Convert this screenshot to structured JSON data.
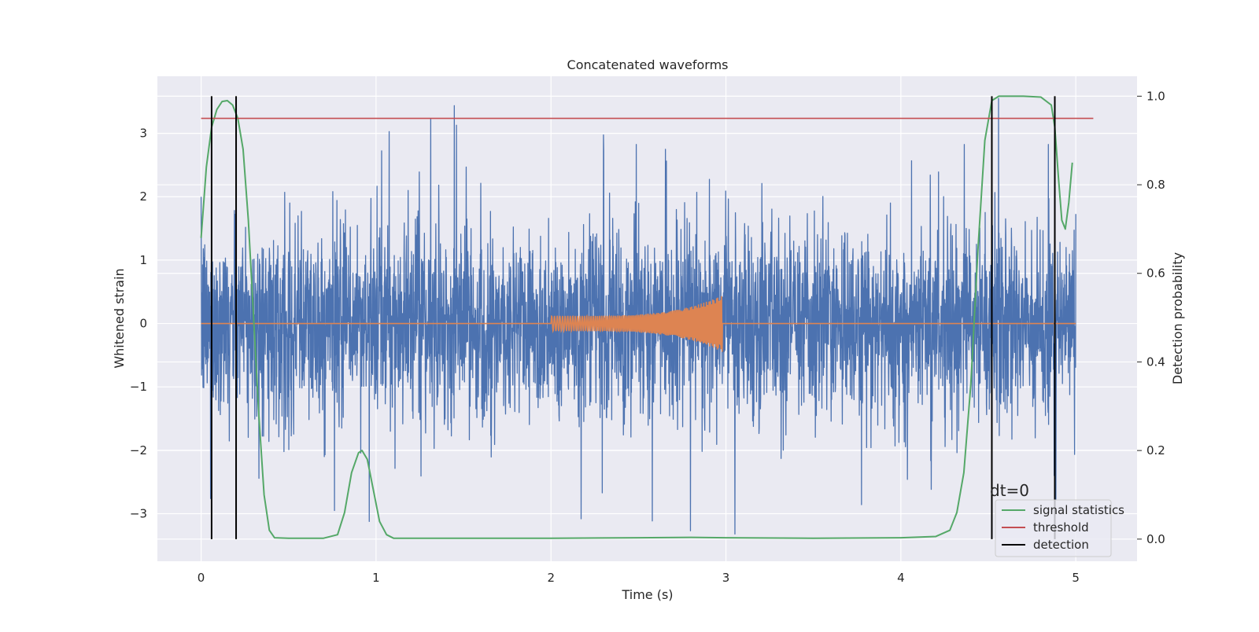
{
  "chart_data": {
    "type": "line",
    "title": "Concatenated waveforms",
    "xlabel": "Time (s)",
    "ylabel_left": "Whitened strain",
    "ylabel_right": "Detection probability",
    "xlim": [
      -0.25,
      5.35
    ],
    "ylim_left": [
      -3.75,
      3.9
    ],
    "ylim_right": [
      -0.05,
      1.045
    ],
    "x_ticks": [
      0,
      1,
      2,
      3,
      4,
      5
    ],
    "x_tick_labels": [
      "0",
      "1",
      "2",
      "3",
      "4",
      "5"
    ],
    "y_left_ticks": [
      -3,
      -2,
      -1,
      0,
      1,
      2,
      3
    ],
    "y_left_tick_labels": [
      "−3",
      "−2",
      "−1",
      "0",
      "1",
      "2",
      "3"
    ],
    "y_right_ticks": [
      0.0,
      0.2,
      0.4,
      0.6,
      0.8,
      1.0
    ],
    "y_right_tick_labels": [
      "0.0",
      "0.2",
      "0.4",
      "0.6",
      "0.8",
      "1.0"
    ],
    "grid": true,
    "legend_position": "lower-right",
    "annotation": "dt=0",
    "series": [
      {
        "name": "",
        "axis": "left",
        "kind": "noise",
        "color": "#4c72b0",
        "description_values": {
          "x_range": [
            0,
            5
          ],
          "envelope_typical": 2.2,
          "max": 3.55,
          "min": -3.4
        }
      },
      {
        "name": "",
        "axis": "left",
        "kind": "chirp",
        "color": "#dd8452",
        "x_range": [
          0,
          5
        ],
        "chirp_start": 2.0,
        "chirp_end": 2.98,
        "amplitude_start": 0.12,
        "amplitude_peak": 0.45
      },
      {
        "name": "signal statistics",
        "axis": "right",
        "color": "#55a868",
        "x": [
          0.0,
          0.03,
          0.06,
          0.09,
          0.12,
          0.15,
          0.18,
          0.21,
          0.24,
          0.27,
          0.3,
          0.33,
          0.36,
          0.39,
          0.42,
          0.5,
          0.7,
          0.78,
          0.82,
          0.86,
          0.9,
          0.92,
          0.95,
          0.98,
          1.02,
          1.06,
          1.1,
          1.5,
          2.0,
          2.5,
          2.8,
          3.0,
          3.5,
          4.0,
          4.2,
          4.28,
          4.32,
          4.36,
          4.4,
          4.44,
          4.48,
          4.52,
          4.56,
          4.6,
          4.7,
          4.8,
          4.86,
          4.88,
          4.9,
          4.92,
          4.94,
          4.96,
          4.98
        ],
        "y": [
          0.68,
          0.84,
          0.93,
          0.97,
          0.988,
          0.99,
          0.98,
          0.95,
          0.88,
          0.72,
          0.5,
          0.28,
          0.1,
          0.02,
          0.003,
          0.002,
          0.002,
          0.01,
          0.06,
          0.15,
          0.195,
          0.2,
          0.18,
          0.12,
          0.04,
          0.01,
          0.002,
          0.002,
          0.002,
          0.003,
          0.004,
          0.003,
          0.002,
          0.003,
          0.006,
          0.02,
          0.06,
          0.15,
          0.35,
          0.65,
          0.9,
          0.99,
          1.0,
          1.0,
          1.0,
          0.998,
          0.98,
          0.93,
          0.82,
          0.72,
          0.7,
          0.76,
          0.85
        ]
      },
      {
        "name": "threshold",
        "axis": "right",
        "color": "#c44e52",
        "x": [
          0.0,
          5.1
        ],
        "y": [
          0.95,
          0.95
        ]
      },
      {
        "name": "detection",
        "axis": "right",
        "color": "#000000",
        "x": [
          0.06,
          0.2,
          4.52,
          4.88
        ],
        "y_range": [
          0.0,
          1.0
        ]
      }
    ]
  }
}
